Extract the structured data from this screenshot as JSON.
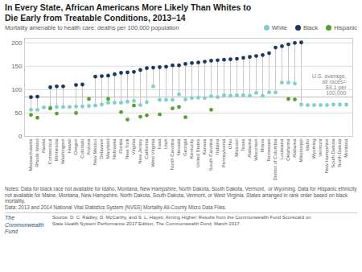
{
  "chart_data": {
    "type": "scatter",
    "title": "In Every State, African Americans More Likely Than Whites to\nDie Early from Treatable Conditions, 2013–14",
    "subtitle": "Mortality amenable to health care: deaths per 100,000 population",
    "categories": [
      "Massachusetts",
      "Rhode Island",
      "Alaska",
      "Connecticut",
      "Minnesota",
      "Washington",
      "Hawaii",
      "Oregon",
      "Colorado",
      "Arizona",
      "New Mexico",
      "Delaware",
      "Maryland",
      "Nebraska",
      "Florida",
      "New York",
      "Virginia",
      "New Jersey",
      "California",
      "West Virginia",
      "Iowa",
      "Utah",
      "North Carolina",
      "Nevada",
      "Georgia",
      "Kentucky",
      "United States",
      "Kansas",
      "South Carolina",
      "Indiana",
      "Pennsylvania",
      "Ohio",
      "Missouri",
      "Texas",
      "Alabama",
      "Wisconsin",
      "Illinois",
      "Tennessee",
      "District of Columbia",
      "Louisiana",
      "Oklahoma",
      "Alabama",
      "Mississippi",
      "Idaho",
      "Wyoming",
      "Vermont",
      "New Hampshire",
      "South Dakota",
      "North Dakota",
      "Montana"
    ],
    "series": [
      {
        "name": "White",
        "color": "#7ececa",
        "values": [
          57,
          57,
          62,
          62,
          63,
          63,
          63,
          64,
          64,
          65,
          66,
          68,
          72,
          72,
          72,
          74,
          76,
          67,
          73,
          107,
          78,
          78,
          78,
          90,
          79,
          82,
          83,
          82,
          86,
          84,
          88,
          87,
          88,
          88,
          87,
          93,
          87,
          94,
          94,
          115,
          115,
          113,
          68,
          67,
          67,
          67,
          67,
          68,
          68,
          68
        ]
      },
      {
        "name": "Black",
        "color": "#1a3a5c",
        "values": [
          84,
          85,
          null,
          105,
          107,
          107,
          null,
          110,
          111,
          null,
          128,
          129,
          130,
          133,
          136,
          137,
          138,
          142,
          146,
          147,
          148,
          149,
          152,
          152,
          155,
          157,
          158,
          160,
          162,
          163,
          164,
          165,
          166,
          168,
          170,
          172,
          174,
          178,
          190,
          193,
          197,
          200,
          201,
          null,
          null,
          null,
          null,
          null,
          null,
          null
        ]
      },
      {
        "name": "Hispanic",
        "color": "#5a9e2f",
        "values": [
          46,
          40,
          null,
          60,
          49,
          null,
          null,
          50,
          null,
          80,
          null,
          null,
          80,
          null,
          52,
          36,
          66,
          42,
          45,
          null,
          47,
          null,
          60,
          63,
          41,
          null,
          null,
          null,
          57,
          null,
          null,
          null,
          null,
          null,
          null,
          null,
          null,
          null,
          null,
          null,
          80,
          79,
          null,
          null,
          null,
          null,
          null,
          null,
          null,
          null
        ]
      }
    ],
    "reference_line": {
      "value": 84.1,
      "label": "U.S. average,\nall races=\n84.1 per\n100,000"
    },
    "ylim": [
      0,
      210
    ],
    "yticks": [
      0,
      50,
      100,
      150,
      200
    ],
    "grid": true,
    "legend": "top",
    "notes": [
      "Notes: Data for black race not available for Idaho, Montana, New Hampshire, North Dakota, South Dakota, Vermont,  or Wyoming. Data for Hispanic ethnicity",
      "not available for Maine, Montana, New Hampshire, North Dakota, South Dakota, Vermont, or West Virginia. States arranged in rank order based on black",
      "mortality.",
      "Data: 2013 and 2014 National Vital Statistics System (NVSS) Mortality All-County Micro Data Files."
    ],
    "source": [
      "Source: D. C. Radley, D. McCarthy, and S. L. Hayes, Aiming Higher: Results from the Commonwealth Fund Scorecard on",
      "State Health System Performance 2017 Edition, The Commonwealth Fund, March 2017."
    ],
    "fund_name": "The\nCommonwealth\nFund"
  }
}
